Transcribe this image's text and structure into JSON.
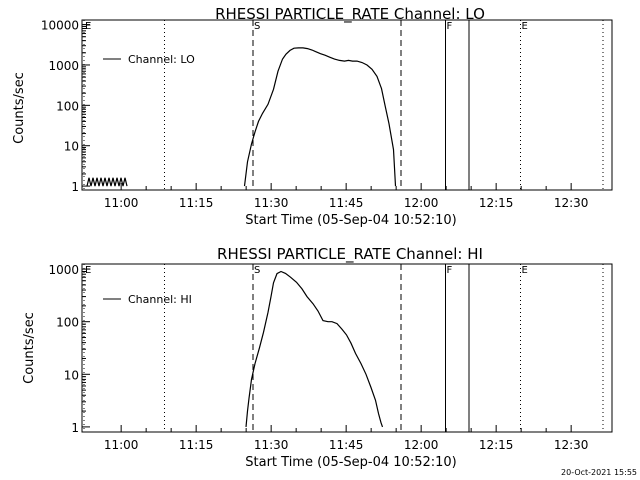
{
  "footer": {
    "stamp": "20-Oct-2021 15:55"
  },
  "chart_data": [
    {
      "type": "line",
      "title": "RHESSI PARTICLE_RATE Channel: LO",
      "xlabel": "Start Time (05-Sep-04 10:52:10)",
      "ylabel": "Counts/sec",
      "yscale": "log",
      "xlim_minutes_from_start": [
        0,
        106
      ],
      "ylim": [
        0.8,
        13000
      ],
      "xticks": [
        {
          "label": "11:00",
          "minutes": 7.83
        },
        {
          "label": "11:15",
          "minutes": 22.83
        },
        {
          "label": "11:30",
          "minutes": 37.83
        },
        {
          "label": "11:45",
          "minutes": 52.83
        },
        {
          "label": "12:00",
          "minutes": 67.83
        },
        {
          "label": "12:15",
          "minutes": 82.83
        },
        {
          "label": "12:30",
          "minutes": 97.83
        }
      ],
      "yticks": [
        {
          "label": "1",
          "value": 1
        },
        {
          "label": "10",
          "value": 10
        },
        {
          "label": "100",
          "value": 100
        },
        {
          "label": "1000",
          "value": 1000
        },
        {
          "label": "10000",
          "value": 10000
        }
      ],
      "legend": {
        "label": "Channel: LO",
        "placement": "top-left"
      },
      "markers": [
        {
          "label": "E",
          "minutes": 0.4,
          "style": "dotted"
        },
        {
          "label": "",
          "minutes": 16.5,
          "style": "dotted"
        },
        {
          "label": "S",
          "minutes": 34.2,
          "style": "dashed"
        },
        {
          "label": "",
          "minutes": 63.8,
          "style": "dashed"
        },
        {
          "label": "F",
          "minutes": 72.7,
          "style": "solid"
        },
        {
          "label": "",
          "minutes": 77.4,
          "style": "solid"
        },
        {
          "label": "E",
          "minutes": 87.7,
          "style": "dotted"
        },
        {
          "label": "",
          "minutes": 104.2,
          "style": "dotted"
        }
      ],
      "series": [
        {
          "name": "Channel: LO",
          "x": [
            1.0,
            1.4,
            1.8,
            2.2,
            2.6,
            3.0,
            3.4,
            3.8,
            4.2,
            4.6,
            5.0,
            5.4,
            5.8,
            6.2,
            6.6,
            7.0,
            7.4,
            7.8,
            8.2,
            8.6,
            9.0
          ],
          "y": [
            1,
            1.6,
            1,
            1.6,
            1,
            1.6,
            1,
            1.6,
            1,
            1.6,
            1,
            1.6,
            1,
            1.6,
            1,
            1.6,
            1,
            1.6,
            1,
            1.6,
            1
          ]
        },
        {
          "name": "Channel: LO",
          "x": [
            32.5,
            33.1,
            33.9,
            34.6,
            35.3,
            36.1,
            37.2,
            38.3,
            39.2,
            40.1,
            40.8,
            41.6,
            42.4,
            43.3,
            44.2,
            45.1,
            46.0,
            46.7,
            47.7,
            48.6,
            49.6,
            50.5,
            51.5,
            52.5,
            53.3,
            54.1,
            55.0,
            56.0,
            57.0,
            58.0,
            59.0,
            59.9,
            60.6,
            61.4,
            62.3,
            62.7
          ],
          "y": [
            1,
            4,
            11,
            22,
            40,
            63,
            106,
            250,
            700,
            1400,
            1850,
            2300,
            2600,
            2650,
            2650,
            2550,
            2350,
            2150,
            1900,
            1750,
            1550,
            1400,
            1300,
            1250,
            1300,
            1250,
            1250,
            1150,
            1000,
            780,
            520,
            260,
            100,
            35,
            8,
            1
          ]
        }
      ]
    },
    {
      "type": "line",
      "title": "RHESSI PARTICLE_RATE Channel: HI",
      "xlabel": "Start Time (05-Sep-04 10:52:10)",
      "ylabel": "Counts/sec",
      "yscale": "log",
      "xlim_minutes_from_start": [
        0,
        106
      ],
      "ylim": [
        0.8,
        1250
      ],
      "xticks": [
        {
          "label": "11:00",
          "minutes": 7.83
        },
        {
          "label": "11:15",
          "minutes": 22.83
        },
        {
          "label": "11:30",
          "minutes": 37.83
        },
        {
          "label": "11:45",
          "minutes": 52.83
        },
        {
          "label": "12:00",
          "minutes": 67.83
        },
        {
          "label": "12:15",
          "minutes": 82.83
        },
        {
          "label": "12:30",
          "minutes": 97.83
        }
      ],
      "yticks": [
        {
          "label": "1",
          "value": 1
        },
        {
          "label": "10",
          "value": 10
        },
        {
          "label": "100",
          "value": 100
        },
        {
          "label": "1000",
          "value": 1000
        }
      ],
      "legend": {
        "label": "Channel: HI",
        "placement": "top-left"
      },
      "markers": [
        {
          "label": "E",
          "minutes": 0.4,
          "style": "dotted"
        },
        {
          "label": "",
          "minutes": 16.5,
          "style": "dotted"
        },
        {
          "label": "S",
          "minutes": 34.2,
          "style": "dashed"
        },
        {
          "label": "",
          "minutes": 63.8,
          "style": "dashed"
        },
        {
          "label": "F",
          "minutes": 72.7,
          "style": "solid"
        },
        {
          "label": "",
          "minutes": 77.4,
          "style": "solid"
        },
        {
          "label": "E",
          "minutes": 87.7,
          "style": "dotted"
        },
        {
          "label": "",
          "minutes": 104.2,
          "style": "dotted"
        }
      ],
      "series": [
        {
          "name": "Channel: HI",
          "x": [
            32.8,
            33.1,
            33.4,
            33.9,
            34.6,
            35.5,
            36.3,
            37.2,
            37.8,
            38.3,
            39.0,
            39.8,
            40.7,
            41.7,
            42.9,
            44.0,
            45.0,
            46.2,
            47.2,
            48.2,
            49.2,
            50.0,
            51.0,
            52.0,
            52.9,
            53.8,
            54.7,
            55.8,
            56.8,
            57.8,
            58.7,
            59.3,
            59.8,
            60.1
          ],
          "y": [
            1,
            2,
            3.5,
            8,
            16,
            32,
            63,
            150,
            300,
            550,
            820,
            900,
            830,
            700,
            560,
            420,
            300,
            220,
            160,
            105,
            100,
            100,
            92,
            72,
            56,
            39,
            25,
            16,
            10,
            5.6,
            3.2,
            1.8,
            1.2,
            1
          ]
        }
      ]
    }
  ]
}
